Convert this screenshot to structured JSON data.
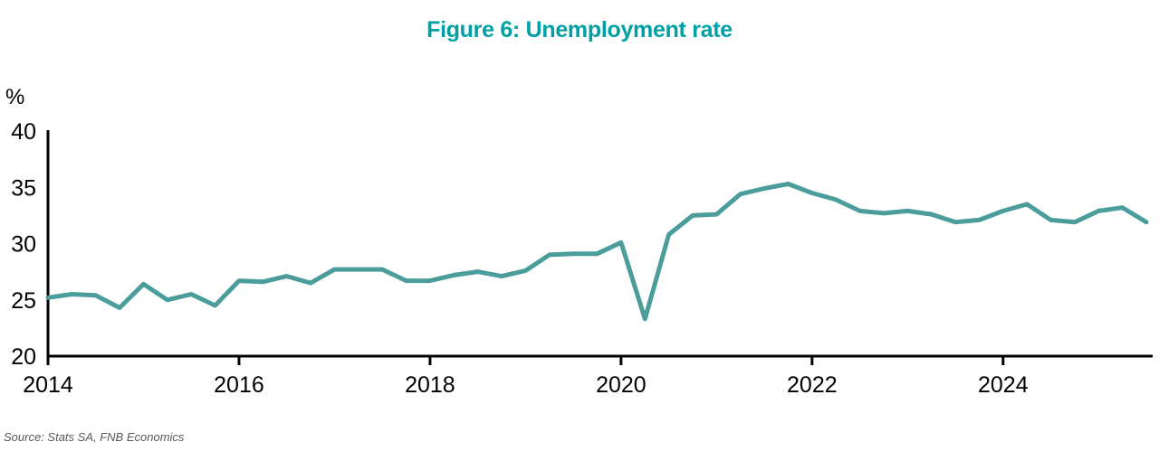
{
  "header": {
    "title": "Figure 6: Unemployment rate",
    "title_color": "#00a0a5"
  },
  "footer": {
    "source": "Source: Stats SA, FNB Economics"
  },
  "chart_data": {
    "type": "line",
    "title": "Figure 6: Unemployment rate",
    "ylabel": "%",
    "xlabel": "",
    "frequency": "quarterly",
    "grid": false,
    "legend": "none",
    "line_color": "#4a9d9a",
    "axis_color": "#000000",
    "ylim": [
      20,
      40
    ],
    "y_ticks": [
      20,
      25,
      30,
      35,
      40
    ],
    "x_tick_labels": [
      "2014",
      "2016",
      "2018",
      "2020",
      "2022",
      "2024"
    ],
    "x_range_periods": [
      "2014Q1",
      "2025Q3"
    ],
    "periods": [
      "2014Q1",
      "2014Q2",
      "2014Q3",
      "2014Q4",
      "2015Q1",
      "2015Q2",
      "2015Q3",
      "2015Q4",
      "2016Q1",
      "2016Q2",
      "2016Q3",
      "2016Q4",
      "2017Q1",
      "2017Q2",
      "2017Q3",
      "2017Q4",
      "2018Q1",
      "2018Q2",
      "2018Q3",
      "2018Q4",
      "2019Q1",
      "2019Q2",
      "2019Q3",
      "2019Q4",
      "2020Q1",
      "2020Q2",
      "2020Q3",
      "2020Q4",
      "2021Q1",
      "2021Q2",
      "2021Q3",
      "2021Q4",
      "2022Q1",
      "2022Q2",
      "2022Q3",
      "2022Q4",
      "2023Q1",
      "2023Q2",
      "2023Q3",
      "2023Q4",
      "2024Q1",
      "2024Q2",
      "2024Q3",
      "2024Q4",
      "2025Q1",
      "2025Q2",
      "2025Q3"
    ],
    "values": [
      25.2,
      25.5,
      25.4,
      24.3,
      26.4,
      25.0,
      25.5,
      24.5,
      26.7,
      26.6,
      27.1,
      26.5,
      27.7,
      27.7,
      27.7,
      26.7,
      26.7,
      27.2,
      27.5,
      27.1,
      27.6,
      29.0,
      29.1,
      29.1,
      30.1,
      23.3,
      30.8,
      32.5,
      32.6,
      34.4,
      34.9,
      35.3,
      34.5,
      33.9,
      32.9,
      32.7,
      32.9,
      32.6,
      31.9,
      32.1,
      32.9,
      33.5,
      32.1,
      31.9,
      32.9,
      33.2,
      31.9
    ]
  }
}
